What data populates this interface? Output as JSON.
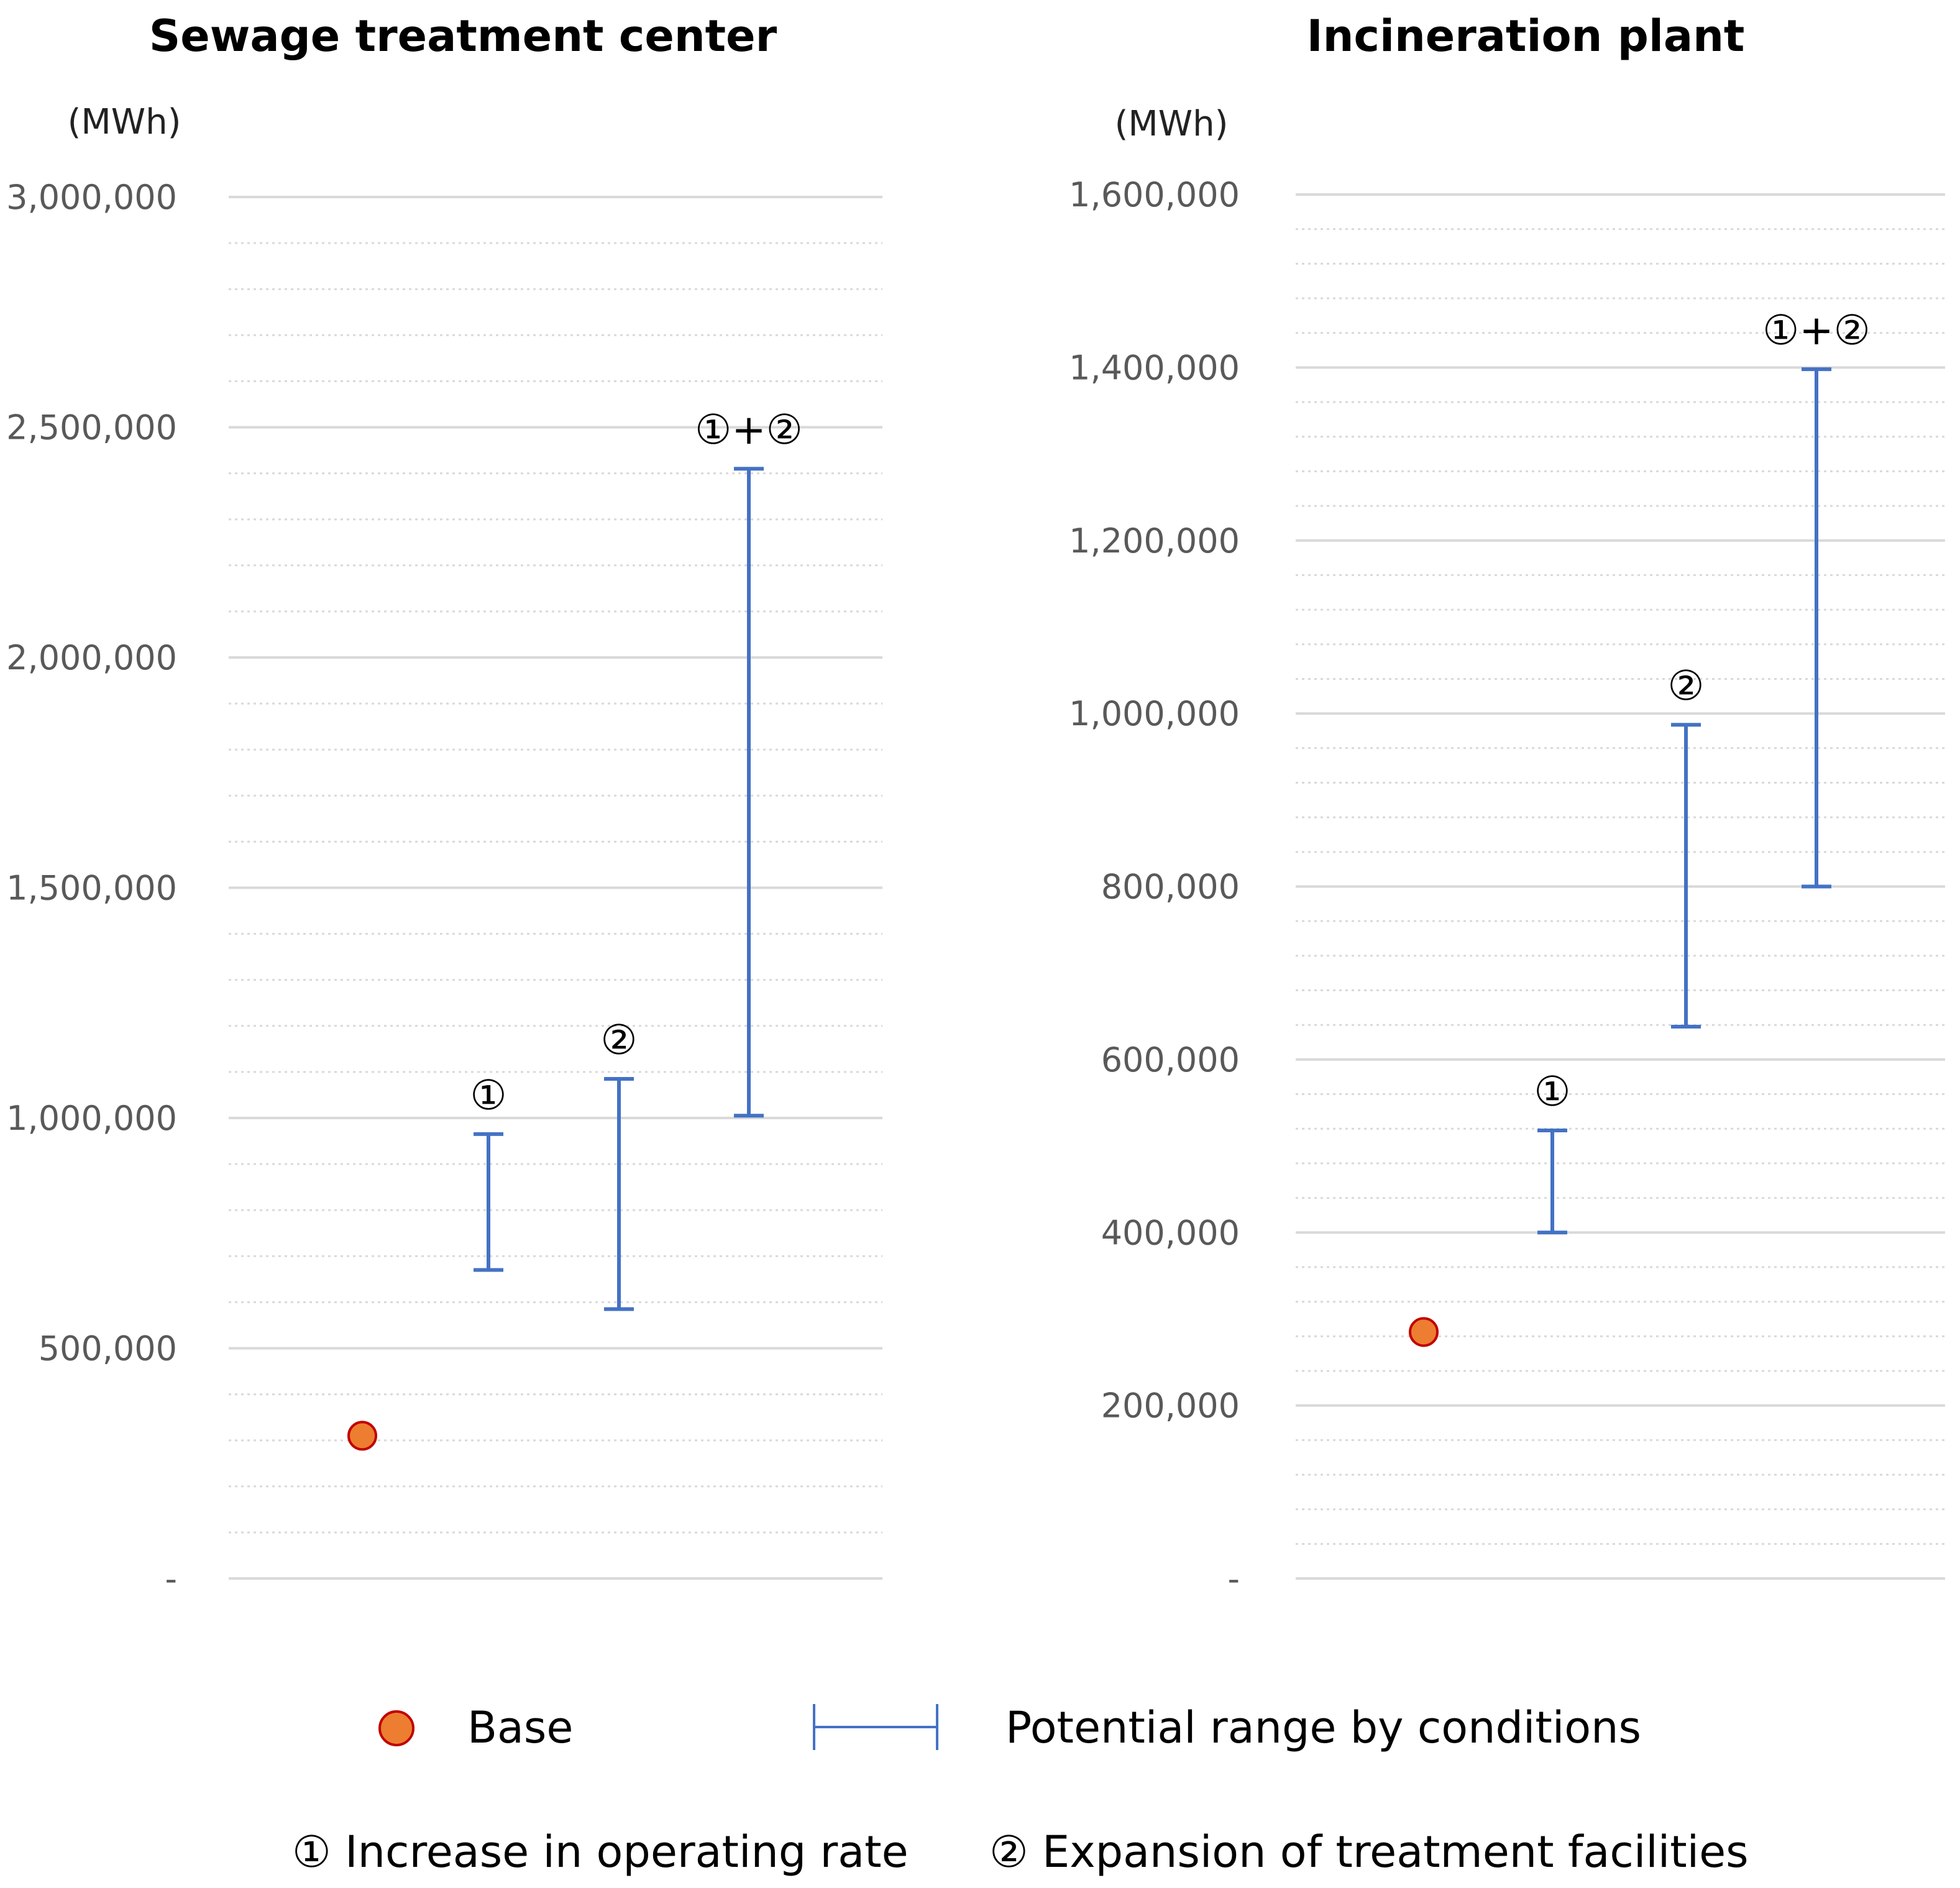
{
  "chart_data": [
    {
      "type": "scatter",
      "title": "Sewage treatment center",
      "unit_label": "(MWh)",
      "ylim": [
        0,
        3000000
      ],
      "y_ticks": [
        {
          "value": 0,
          "label": "-"
        },
        {
          "value": 500000,
          "label": "500,000"
        },
        {
          "value": 1000000,
          "label": "1,000,000"
        },
        {
          "value": 1500000,
          "label": "1,500,000"
        },
        {
          "value": 2000000,
          "label": "2,000,000"
        },
        {
          "value": 2500000,
          "label": "2,500,000"
        },
        {
          "value": 3000000,
          "label": "3,000,000"
        }
      ],
      "minor_step": 100000,
      "base": {
        "name": "Base",
        "value": 310000
      },
      "ranges": [
        {
          "label": "①",
          "low": 670000,
          "high": 965000
        },
        {
          "label": "②",
          "low": 585000,
          "high": 1085000
        },
        {
          "label": "①+②",
          "low": 1005000,
          "high": 2410000
        }
      ]
    },
    {
      "type": "scatter",
      "title": "Incineration plant",
      "unit_label": "(MWh)",
      "ylim": [
        0,
        1600000
      ],
      "y_ticks": [
        {
          "value": 0,
          "label": "-"
        },
        {
          "value": 200000,
          "label": "200,000"
        },
        {
          "value": 400000,
          "label": "400,000"
        },
        {
          "value": 600000,
          "label": "600,000"
        },
        {
          "value": 800000,
          "label": "800,000"
        },
        {
          "value": 1000000,
          "label": "1,000,000"
        },
        {
          "value": 1200000,
          "label": "1,200,000"
        },
        {
          "value": 1400000,
          "label": "1,400,000"
        },
        {
          "value": 1600000,
          "label": "1,600,000"
        }
      ],
      "minor_step": 40000,
      "base": {
        "name": "Base",
        "value": 285000
      },
      "ranges": [
        {
          "label": "①",
          "low": 400000,
          "high": 518000
        },
        {
          "label": "②",
          "low": 638000,
          "high": 987000
        },
        {
          "label": "①+②",
          "low": 800000,
          "high": 1398000
        }
      ]
    }
  ],
  "legend": {
    "base_label": "Base",
    "range_label": "Potential range by conditions",
    "condition_1": "① Increase in operating rate",
    "condition_2": "② Expansion of treatment facilities"
  },
  "colors": {
    "base_fill": "#ed7d31",
    "base_stroke": "#c00000",
    "range": "#4472c4",
    "grid": "#d9d9d9"
  }
}
